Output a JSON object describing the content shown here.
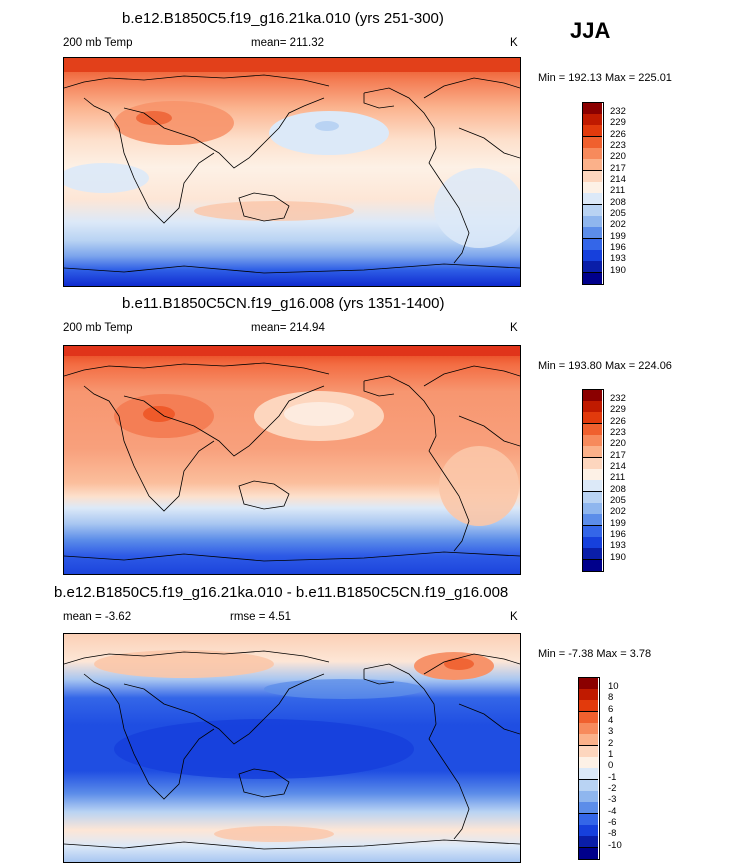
{
  "season": "JJA",
  "panels": [
    {
      "title": "b.e12.B1850C5.f19_g16.21ka.010 (yrs 251-300)",
      "left_label": "200 mb Temp",
      "center_label": "mean= 211.32",
      "right_label": "K",
      "minmax": "Min = 192.13 Max = 225.01",
      "colorbar": {
        "labels": [
          "232",
          "229",
          "226",
          "223",
          "220",
          "217",
          "214",
          "211",
          "208",
          "205",
          "202",
          "199",
          "196",
          "193",
          "190"
        ],
        "colors": [
          "#8b0000",
          "#c01a00",
          "#e23a0c",
          "#f0602e",
          "#f78a5c",
          "#fbb18a",
          "#fdd6be",
          "#fdf1e6",
          "#dce9f8",
          "#b9d3f3",
          "#8fb6ee",
          "#5c8de9",
          "#3466e8",
          "#1640dc",
          "#0a1ea8",
          "#00008b"
        ]
      }
    },
    {
      "title": "b.e11.B1850C5CN.f19_g16.008 (yrs 1351-1400)",
      "left_label": "200 mb Temp",
      "center_label": "mean= 214.94",
      "right_label": "K",
      "minmax": "Min = 193.80 Max = 224.06",
      "colorbar": {
        "labels": [
          "232",
          "229",
          "226",
          "223",
          "220",
          "217",
          "214",
          "211",
          "208",
          "205",
          "202",
          "199",
          "196",
          "193",
          "190"
        ],
        "colors": [
          "#8b0000",
          "#c01a00",
          "#e23a0c",
          "#f0602e",
          "#f78a5c",
          "#fbb18a",
          "#fdd6be",
          "#fdf1e6",
          "#dce9f8",
          "#b9d3f3",
          "#8fb6ee",
          "#5c8de9",
          "#3466e8",
          "#1640dc",
          "#0a1ea8",
          "#00008b"
        ]
      }
    },
    {
      "title": "b.e12.B1850C5.f19_g16.21ka.010 - b.e11.B1850C5CN.f19_g16.008",
      "left_label": "mean =  -3.62",
      "center_label": "rmse =   4.51",
      "right_label": "K",
      "minmax": "Min =  -7.38 Max =   3.78",
      "colorbar": {
        "labels": [
          "10",
          "8",
          "6",
          "4",
          "3",
          "2",
          "1",
          "0",
          "-1",
          "-2",
          "-3",
          "-4",
          "-6",
          "-8",
          "-10"
        ],
        "colors": [
          "#8b0000",
          "#c01a00",
          "#e23a0c",
          "#f0602e",
          "#f78a5c",
          "#fbb18a",
          "#fdd6be",
          "#fdf1e6",
          "#dce9f8",
          "#b9d3f3",
          "#8fb6ee",
          "#5c8de9",
          "#3466e8",
          "#1640dc",
          "#0a1ea8",
          "#00008b"
        ]
      }
    }
  ]
}
